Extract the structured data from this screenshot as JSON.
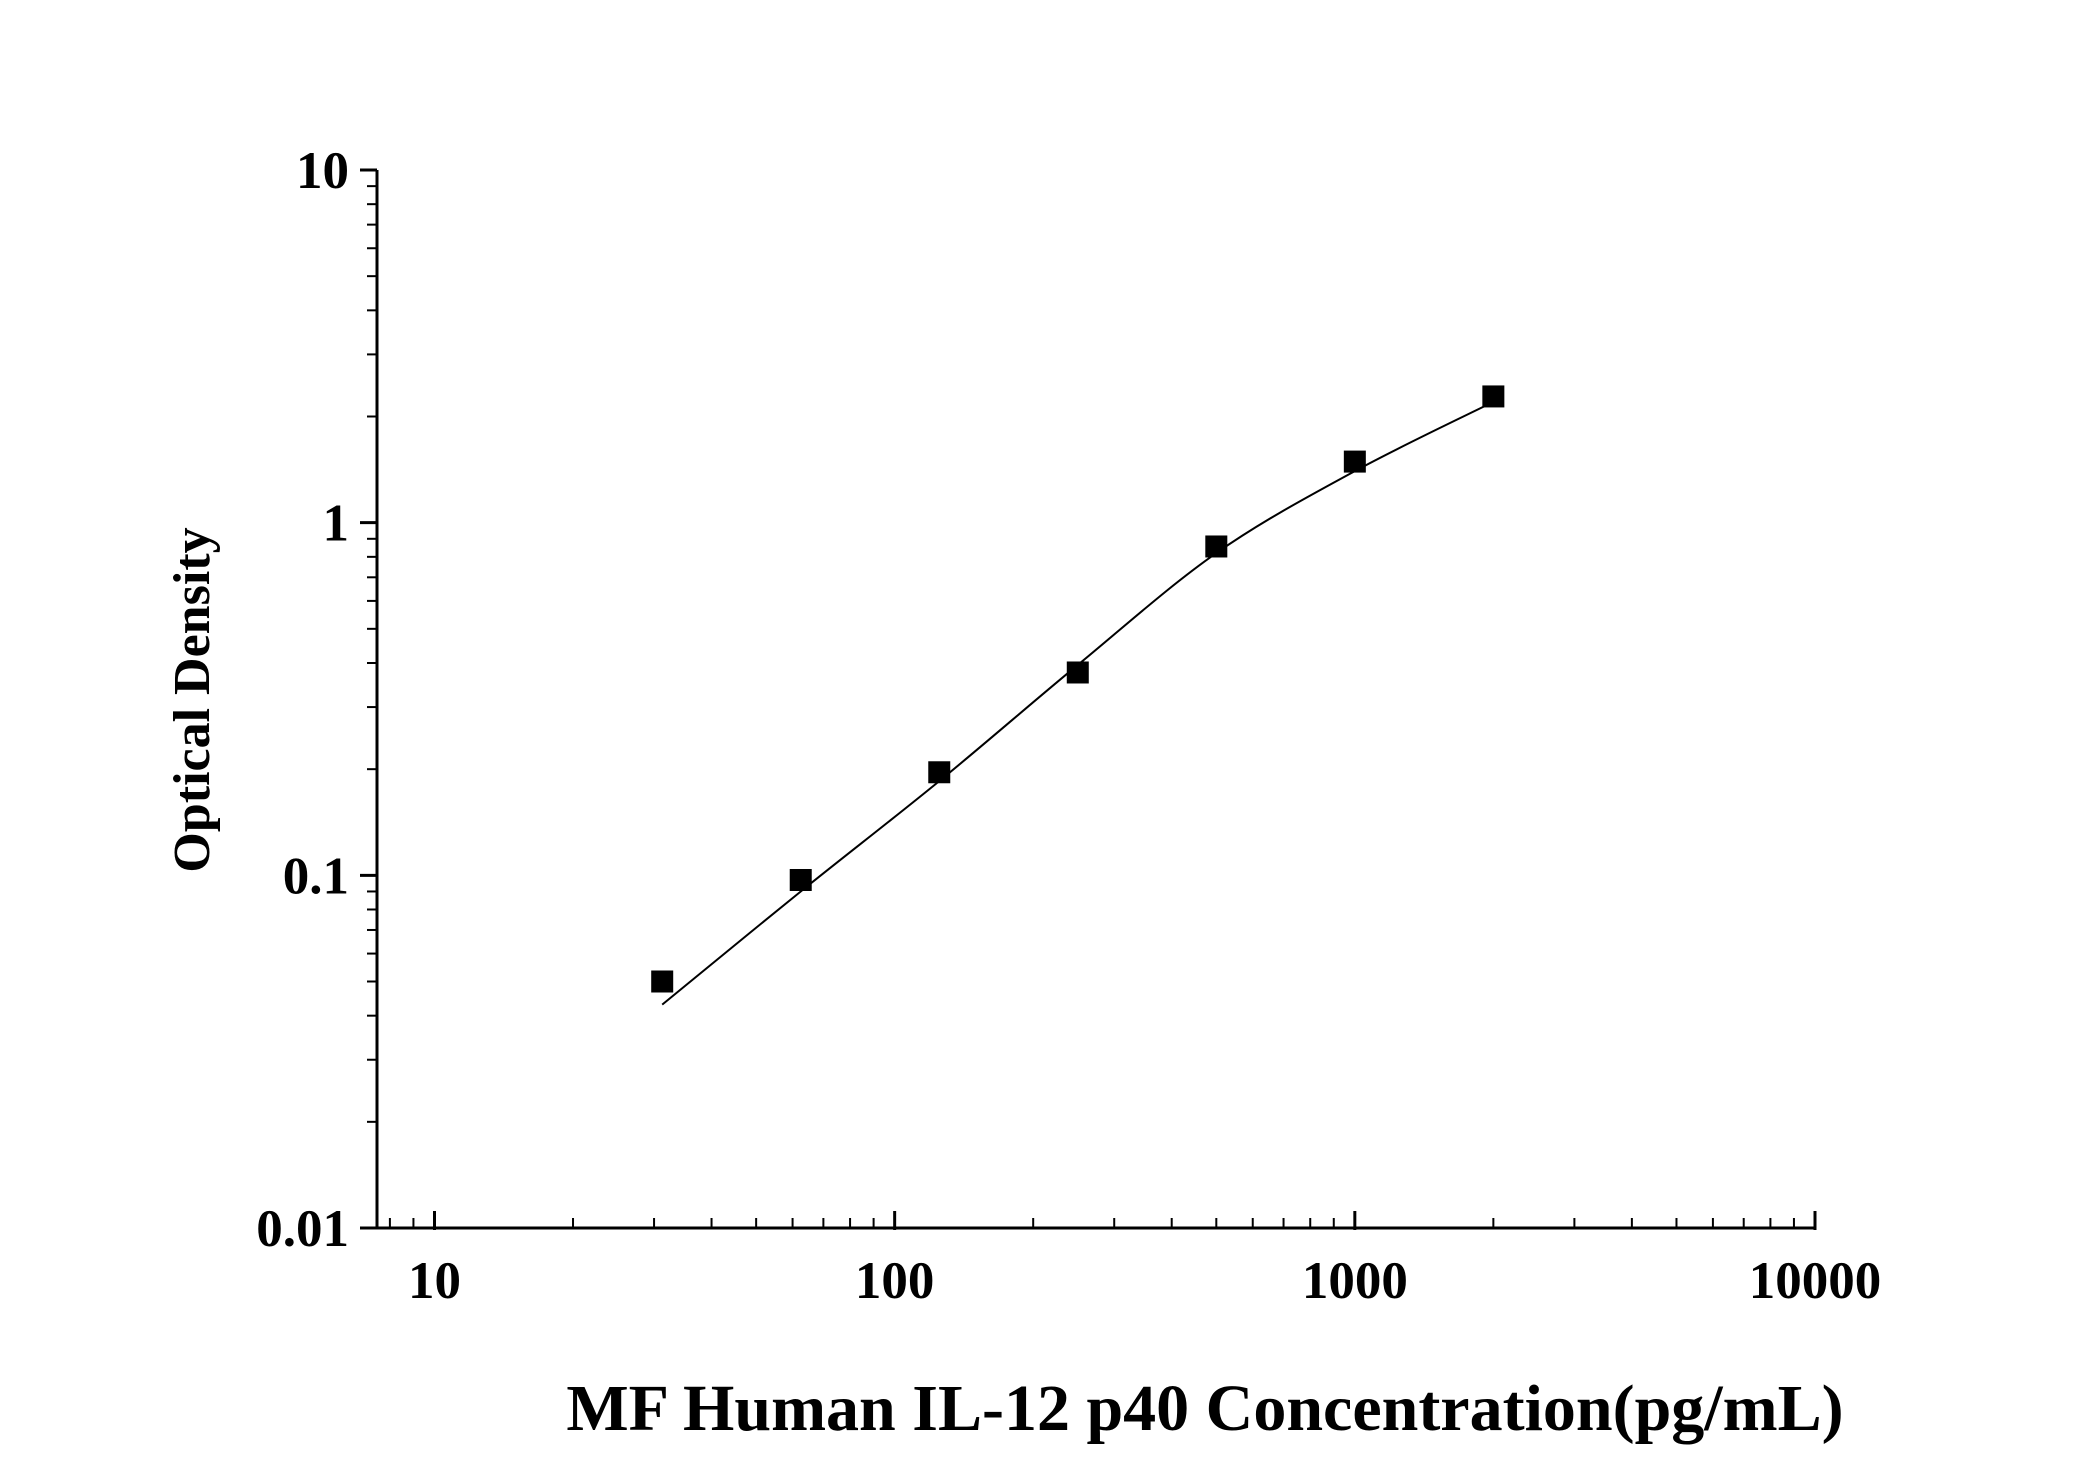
{
  "chart_data": {
    "type": "scatter",
    "title": "",
    "xlabel": "MF Human IL-12 p40 Concentration(pg/mL)",
    "ylabel": "Optical Density",
    "x_scale": "log",
    "y_scale": "log",
    "xlim": [
      7.5,
      10000
    ],
    "ylim": [
      0.01,
      10
    ],
    "x_ticks": [
      10,
      100,
      1000,
      10000
    ],
    "x_tick_labels": [
      "10",
      "100",
      "1000",
      "10000"
    ],
    "y_ticks": [
      0.01,
      0.1,
      1,
      10
    ],
    "y_tick_labels": [
      "0.01",
      "0.1",
      "1",
      "10"
    ],
    "grid": false,
    "legend": "none",
    "series": [
      {
        "marker": "square",
        "x": [
          31.25,
          62.5,
          125,
          250,
          500,
          1000,
          2000
        ],
        "y": [
          0.05,
          0.097,
          0.196,
          0.376,
          0.856,
          1.49,
          2.28
        ]
      }
    ],
    "fit_curve": {
      "x": [
        31.25,
        62.5,
        125,
        250,
        500,
        1000,
        2000
      ],
      "y": [
        0.043,
        0.09,
        0.185,
        0.395,
        0.82,
        1.4,
        2.2
      ]
    },
    "colors": {
      "marker": "#000000",
      "line": "#000000",
      "axis": "#000000"
    }
  }
}
